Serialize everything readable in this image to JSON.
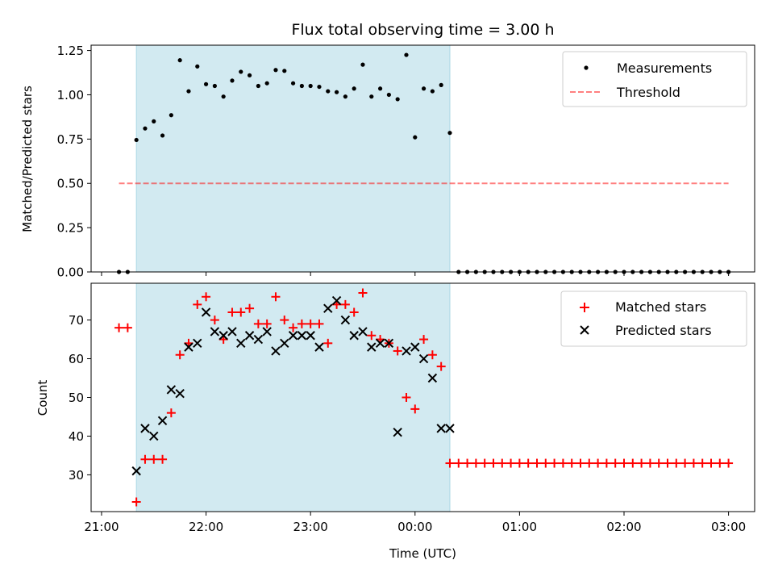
{
  "chart_data": [
    {
      "type": "scatter",
      "title": "Flux total observing time = 3.00 h",
      "xlabel": "",
      "ylabel": "Matched/Predicted stars",
      "xlim": [
        "21:00",
        "03:00"
      ],
      "x_unit": "hours since 21:00 UTC",
      "xlim_hours": [
        -0.1,
        6.25
      ],
      "ylim": [
        0.0,
        1.28
      ],
      "yticks": [
        0.0,
        0.25,
        0.5,
        0.75,
        1.0,
        1.25
      ],
      "ytick_labels": [
        "0.00",
        "0.25",
        "0.50",
        "0.75",
        "1.00",
        "1.25"
      ],
      "shaded_region": {
        "start": "21:20",
        "end": "00:20",
        "color": "#add8e6"
      },
      "legend": {
        "placement": "upper right",
        "entries": [
          "Measurements",
          "Threshold"
        ]
      },
      "threshold": {
        "name": "Threshold",
        "value": 0.5,
        "x_range": [
          "21:10",
          "03:00"
        ],
        "color": "#ff0000",
        "alpha": 0.5,
        "style": "dashed"
      },
      "series": [
        {
          "name": "Measurements",
          "marker": "dot",
          "color": "#000000",
          "x": [
            "21:10",
            "21:15",
            "21:20",
            "21:25",
            "21:30",
            "21:35",
            "21:40",
            "21:45",
            "21:50",
            "21:55",
            "22:00",
            "22:05",
            "22:10",
            "22:15",
            "22:20",
            "22:25",
            "22:30",
            "22:35",
            "22:40",
            "22:45",
            "22:50",
            "22:55",
            "23:00",
            "23:05",
            "23:10",
            "23:15",
            "23:20",
            "23:25",
            "23:30",
            "23:35",
            "23:40",
            "23:45",
            "23:50",
            "23:55",
            "00:00",
            "00:05",
            "00:10",
            "00:15",
            "00:20",
            "00:25",
            "00:30",
            "00:35",
            "00:40",
            "00:45",
            "00:50",
            "00:55",
            "01:00",
            "01:05",
            "01:10",
            "01:15",
            "01:20",
            "01:25",
            "01:30",
            "01:35",
            "01:40",
            "01:45",
            "01:50",
            "01:55",
            "02:00",
            "02:05",
            "02:10",
            "02:15",
            "02:20",
            "02:25",
            "02:30",
            "02:35",
            "02:40",
            "02:45",
            "02:50",
            "02:55",
            "03:00"
          ],
          "y": [
            0.0,
            0.0,
            0.745,
            0.81,
            0.85,
            0.77,
            0.885,
            1.195,
            1.02,
            1.16,
            1.06,
            1.05,
            0.99,
            1.08,
            1.13,
            1.11,
            1.05,
            1.065,
            1.14,
            1.135,
            1.065,
            1.05,
            1.05,
            1.045,
            1.02,
            1.015,
            0.99,
            1.035,
            1.17,
            0.99,
            1.035,
            1.0,
            0.975,
            1.225,
            0.76,
            1.035,
            1.02,
            1.055,
            0.785,
            0.0,
            0.0,
            0.0,
            0.0,
            0.0,
            0.0,
            0.0,
            0.0,
            0.0,
            0.0,
            0.0,
            0.0,
            0.0,
            0.0,
            0.0,
            0.0,
            0.0,
            0.0,
            0.0,
            0.0,
            0.0,
            0.0,
            0.0,
            0.0,
            0.0,
            0.0,
            0.0,
            0.0,
            0.0,
            0.0,
            0.0,
            0.0
          ]
        }
      ]
    },
    {
      "type": "scatter",
      "title": "",
      "xlabel": "Time (UTC)",
      "ylabel": "Count",
      "xlim_hours": [
        -0.1,
        6.25
      ],
      "ylim": [
        20.5,
        79.5
      ],
      "yticks": [
        30,
        40,
        50,
        60,
        70
      ],
      "ytick_labels": [
        "30",
        "40",
        "50",
        "60",
        "70"
      ],
      "xticks": [
        "21:00",
        "22:00",
        "23:00",
        "00:00",
        "01:00",
        "02:00",
        "03:00"
      ],
      "shaded_region": {
        "start": "21:20",
        "end": "00:20",
        "color": "#add8e6"
      },
      "legend": {
        "placement": "upper right",
        "entries": [
          "Matched stars",
          "Predicted stars"
        ]
      },
      "series": [
        {
          "name": "Matched stars",
          "marker": "plus",
          "color": "#ff0000",
          "x": [
            "21:10",
            "21:15",
            "21:20",
            "21:25",
            "21:30",
            "21:35",
            "21:40",
            "21:45",
            "21:50",
            "21:55",
            "22:00",
            "22:05",
            "22:10",
            "22:15",
            "22:20",
            "22:25",
            "22:30",
            "22:35",
            "22:40",
            "22:45",
            "22:50",
            "22:55",
            "23:00",
            "23:05",
            "23:10",
            "23:15",
            "23:20",
            "23:25",
            "23:30",
            "23:35",
            "23:40",
            "23:45",
            "23:50",
            "23:55",
            "00:00",
            "00:05",
            "00:10",
            "00:15",
            "00:20",
            "00:25",
            "00:30",
            "00:35",
            "00:40",
            "00:45",
            "00:50",
            "00:55",
            "01:00",
            "01:05",
            "01:10",
            "01:15",
            "01:20",
            "01:25",
            "01:30",
            "01:35",
            "01:40",
            "01:45",
            "01:50",
            "01:55",
            "02:00",
            "02:05",
            "02:10",
            "02:15",
            "02:20",
            "02:25",
            "02:30",
            "02:35",
            "02:40",
            "02:45",
            "02:50",
            "02:55",
            "03:00"
          ],
          "y": [
            68,
            68,
            23,
            34,
            34,
            34,
            46,
            61,
            64,
            74,
            76,
            70,
            65,
            72,
            72,
            73,
            69,
            69,
            76,
            70,
            68,
            69,
            69,
            69,
            64,
            74,
            74,
            72,
            77,
            66,
            65,
            64,
            62,
            50,
            47,
            65,
            61,
            58,
            33,
            33,
            33,
            33,
            33,
            33,
            33,
            33,
            33,
            33,
            33,
            33,
            33,
            33,
            33,
            33,
            33,
            33,
            33,
            33,
            33,
            33,
            33,
            33,
            33,
            33,
            33,
            33,
            33,
            33,
            33,
            33,
            33
          ]
        },
        {
          "name": "Predicted stars",
          "marker": "x",
          "color": "#000000",
          "x": [
            "21:20",
            "21:25",
            "21:30",
            "21:35",
            "21:40",
            "21:45",
            "21:50",
            "21:55",
            "22:00",
            "22:05",
            "22:10",
            "22:15",
            "22:20",
            "22:25",
            "22:30",
            "22:35",
            "22:40",
            "22:45",
            "22:50",
            "22:55",
            "23:00",
            "23:05",
            "23:10",
            "23:15",
            "23:20",
            "23:25",
            "23:30",
            "23:35",
            "23:40",
            "23:45",
            "23:50",
            "23:55",
            "00:00",
            "00:05",
            "00:10",
            "00:15",
            "00:20"
          ],
          "y": [
            31,
            42,
            40,
            44,
            52,
            51,
            63,
            64,
            72,
            67,
            66,
            67,
            64,
            66,
            65,
            67,
            62,
            64,
            66,
            66,
            66,
            63,
            73,
            75,
            70,
            66,
            67,
            63,
            64,
            64,
            41,
            62,
            63,
            60,
            55,
            42,
            42
          ]
        }
      ]
    }
  ]
}
